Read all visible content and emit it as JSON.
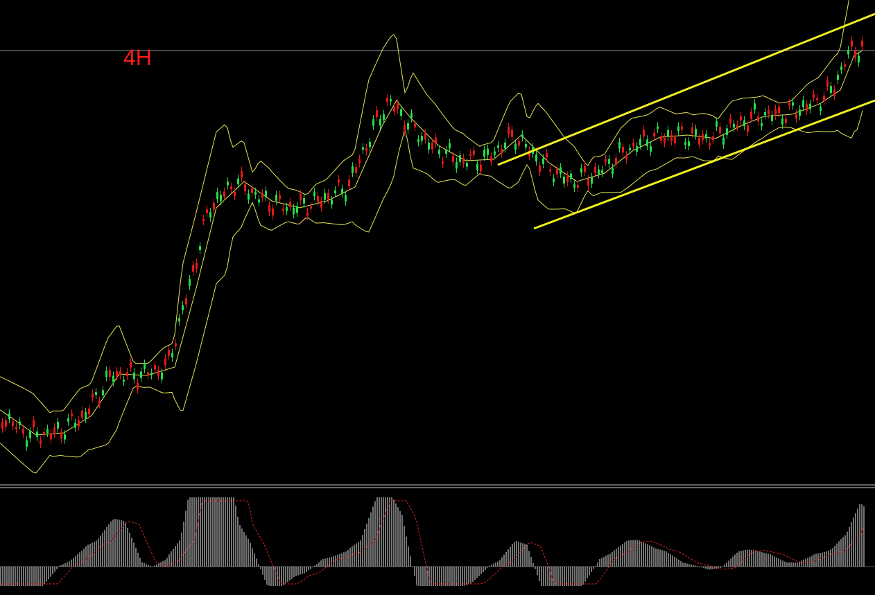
{
  "label": "4H"
}
